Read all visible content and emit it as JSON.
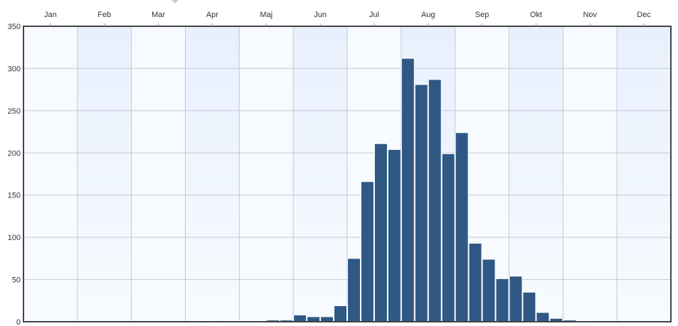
{
  "chart_data": {
    "type": "bar",
    "title": "",
    "xlabel": "",
    "ylabel": "",
    "x_axis_position": "top",
    "month_labels": [
      "Jan",
      "Feb",
      "Mar",
      "Apr",
      "Maj",
      "Jun",
      "Jul",
      "Aug",
      "Sep",
      "Okt",
      "Nov",
      "Dec"
    ],
    "bins_per_month": 4,
    "values": [
      0,
      0,
      0,
      0,
      0,
      0,
      0,
      0,
      0,
      0,
      0,
      0,
      0,
      1,
      0,
      1,
      1,
      1,
      2,
      2,
      8,
      6,
      6,
      19,
      75,
      166,
      211,
      204,
      312,
      281,
      287,
      199,
      224,
      93,
      74,
      51,
      54,
      35,
      11,
      4,
      2,
      1,
      0,
      0,
      0,
      0,
      0,
      0
    ],
    "ylim": [
      0,
      350
    ],
    "yticks": [
      0,
      50,
      100,
      150,
      200,
      250,
      300,
      350
    ],
    "grid": true,
    "bar_color": "#2f5885",
    "bar_edge_color": "#ffffff",
    "alt_band_color": "#eaf1fd",
    "plot_background_color": "#f7faff"
  }
}
